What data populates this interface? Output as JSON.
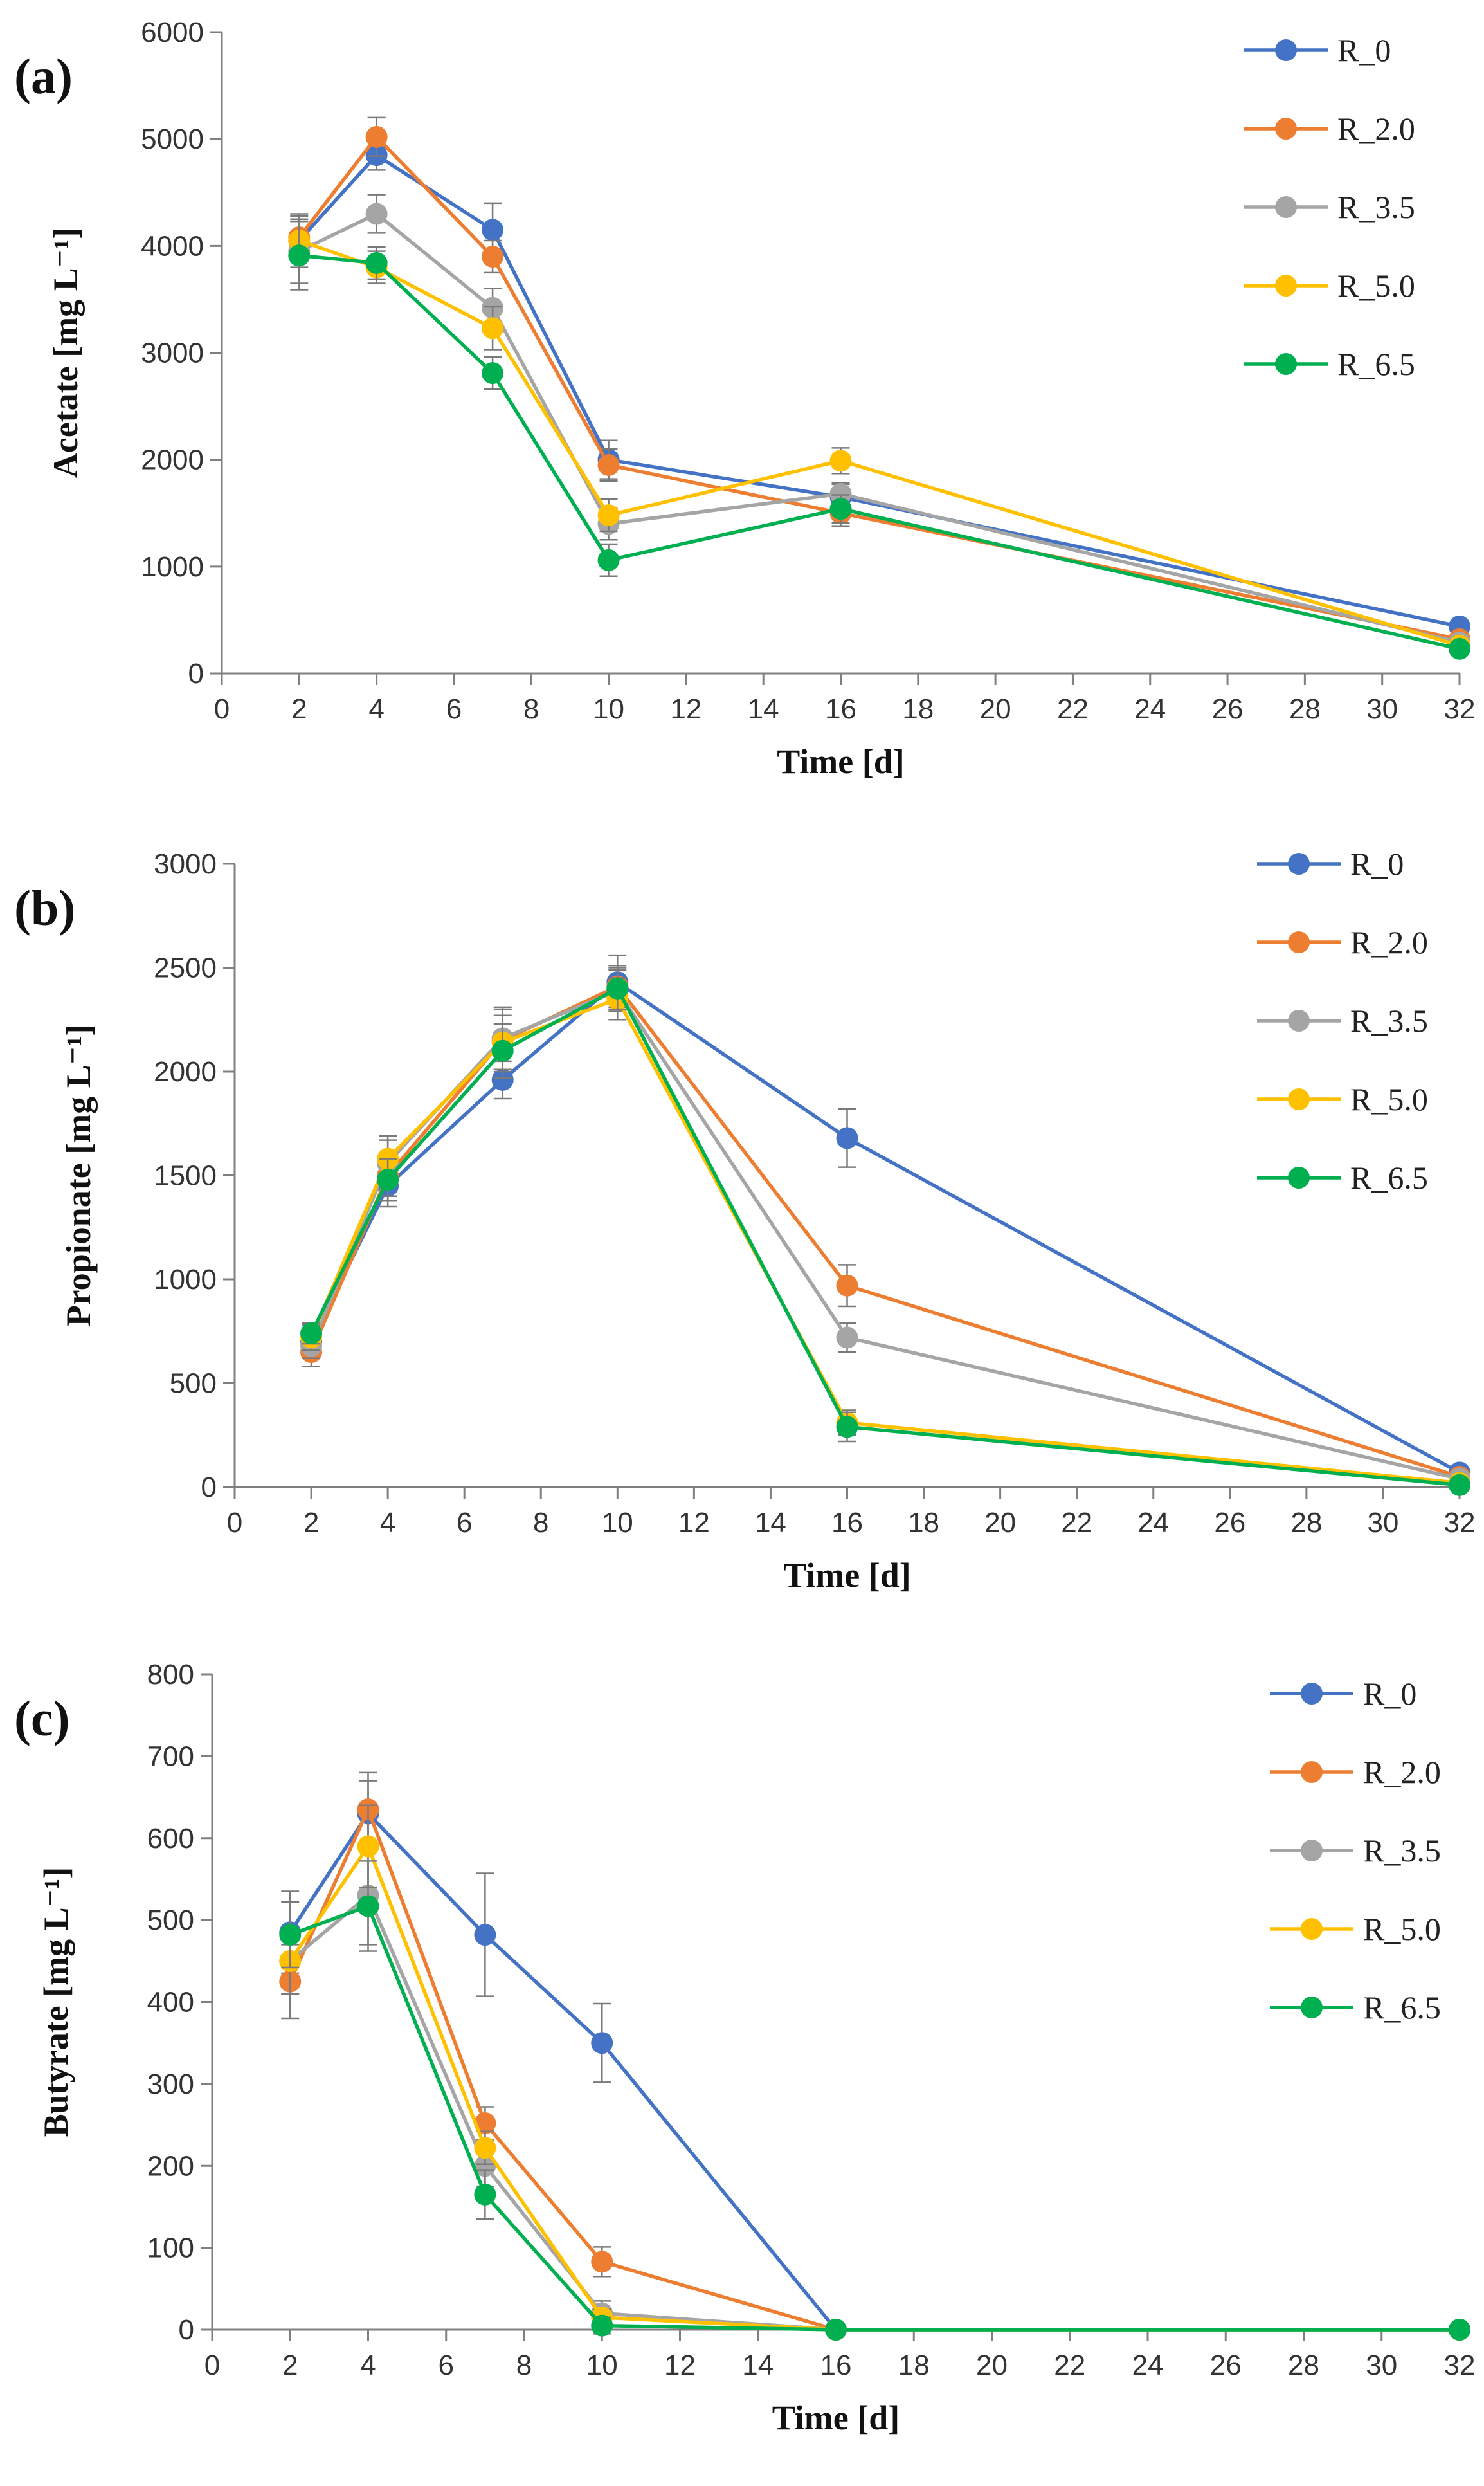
{
  "chart_data": [
    {
      "type": "line",
      "panel_label": "(a)",
      "ylabel": "Acetate [mg L⁻¹]",
      "xlabel": "Time [d]",
      "xlim": [
        0,
        32
      ],
      "ylim": [
        0,
        6000
      ],
      "xticks": [
        0,
        2,
        4,
        6,
        8,
        10,
        12,
        14,
        16,
        18,
        20,
        22,
        24,
        26,
        28,
        30,
        32
      ],
      "yticks": [
        0,
        1000,
        2000,
        3000,
        4000,
        5000,
        6000
      ],
      "x": [
        2,
        4,
        7,
        10,
        16,
        32
      ],
      "legend_position": "top-right",
      "series": [
        {
          "name": "R_0",
          "color": "#4472C4",
          "values": [
            4050,
            4850,
            4150,
            2000,
            1650,
            440
          ],
          "errors": [
            180,
            140,
            250,
            180,
            120,
            50
          ]
        },
        {
          "name": "R_2.0",
          "color": "#ED7D31",
          "values": [
            4080,
            5020,
            3900,
            1950,
            1500,
            320
          ],
          "errors": [
            200,
            180,
            150,
            150,
            120,
            40
          ]
        },
        {
          "name": "R_3.5",
          "color": "#A5A5A5",
          "values": [
            3950,
            4300,
            3420,
            1400,
            1680,
            290
          ],
          "errors": [
            300,
            180,
            180,
            150,
            100,
            40
          ]
        },
        {
          "name": "R_5.0",
          "color": "#FFC000",
          "values": [
            4050,
            3800,
            3230,
            1480,
            1990,
            260
          ],
          "errors": [
            250,
            150,
            200,
            150,
            120,
            30
          ]
        },
        {
          "name": "R_6.5",
          "color": "#00B050",
          "values": [
            3910,
            3840,
            2810,
            1060,
            1540,
            230
          ],
          "errors": [
            320,
            150,
            150,
            150,
            130,
            30
          ]
        }
      ]
    },
    {
      "type": "line",
      "panel_label": "(b)",
      "ylabel": "Propionate [mg L⁻¹]",
      "xlabel": "Time [d]",
      "xlim": [
        0,
        32
      ],
      "ylim": [
        0,
        3000
      ],
      "xticks": [
        0,
        2,
        4,
        6,
        8,
        10,
        12,
        14,
        16,
        18,
        20,
        22,
        24,
        26,
        28,
        30,
        32
      ],
      "yticks": [
        0,
        500,
        1000,
        1500,
        2000,
        2500,
        3000
      ],
      "x": [
        2,
        4,
        7,
        10,
        16,
        32
      ],
      "legend_position": "top-right",
      "series": [
        {
          "name": "R_0",
          "color": "#4472C4",
          "values": [
            700,
            1450,
            1960,
            2430,
            1680,
            70
          ],
          "errors": [
            60,
            100,
            90,
            130,
            140,
            20
          ]
        },
        {
          "name": "R_2.0",
          "color": "#ED7D31",
          "values": [
            650,
            1500,
            2150,
            2410,
            970,
            50
          ],
          "errors": [
            70,
            100,
            150,
            100,
            100,
            20
          ]
        },
        {
          "name": "R_3.5",
          "color": "#A5A5A5",
          "values": [
            680,
            1560,
            2160,
            2390,
            720,
            40
          ],
          "errors": [
            60,
            110,
            150,
            100,
            70,
            15
          ]
        },
        {
          "name": "R_5.0",
          "color": "#FFC000",
          "values": [
            720,
            1580,
            2140,
            2350,
            310,
            20
          ],
          "errors": [
            60,
            110,
            130,
            100,
            60,
            10
          ]
        },
        {
          "name": "R_6.5",
          "color": "#00B050",
          "values": [
            740,
            1480,
            2100,
            2400,
            290,
            10
          ],
          "errors": [
            50,
            100,
            130,
            100,
            70,
            10
          ]
        }
      ]
    },
    {
      "type": "line",
      "panel_label": "(c)",
      "ylabel": "Butyrate [mg L⁻¹]",
      "xlabel": "Time [d]",
      "xlim": [
        0,
        32
      ],
      "ylim": [
        0,
        800
      ],
      "xticks": [
        0,
        2,
        4,
        6,
        8,
        10,
        12,
        14,
        16,
        18,
        20,
        22,
        24,
        26,
        28,
        30,
        32
      ],
      "yticks": [
        0,
        100,
        200,
        300,
        400,
        500,
        600,
        700,
        800
      ],
      "x": [
        2,
        4,
        7,
        10,
        16,
        32
      ],
      "legend_position": "top-right",
      "series": [
        {
          "name": "R_0",
          "color": "#4472C4",
          "values": [
            485,
            630,
            482,
            350,
            0,
            0
          ],
          "errors": [
            50,
            40,
            75,
            48,
            0,
            0
          ]
        },
        {
          "name": "R_2.0",
          "color": "#ED7D31",
          "values": [
            425,
            635,
            252,
            83,
            0,
            0
          ],
          "errors": [
            45,
            45,
            20,
            18,
            0,
            0
          ]
        },
        {
          "name": "R_3.5",
          "color": "#A5A5A5",
          "values": [
            450,
            530,
            200,
            20,
            0,
            0
          ],
          "errors": [
            40,
            60,
            25,
            15,
            0,
            0
          ]
        },
        {
          "name": "R_5.0",
          "color": "#FFC000",
          "values": [
            450,
            590,
            222,
            15,
            0,
            0
          ],
          "errors": [
            40,
            50,
            20,
            10,
            0,
            0
          ]
        },
        {
          "name": "R_6.5",
          "color": "#00B050",
          "values": [
            482,
            517,
            165,
            5,
            0,
            0
          ],
          "errors": [
            40,
            55,
            30,
            10,
            0,
            0
          ]
        }
      ]
    }
  ]
}
